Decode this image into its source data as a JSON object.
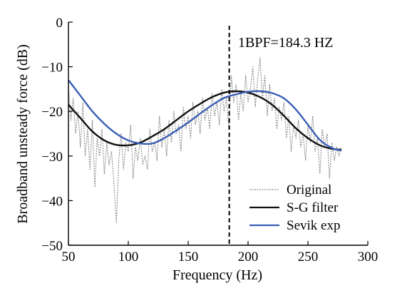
{
  "chart_data": {
    "type": "line",
    "xlabel": "Frequency (Hz)",
    "ylabel": "Broadband unsteady force (dB)",
    "xlim": [
      50,
      300
    ],
    "ylim": [
      -50,
      0
    ],
    "xticks": [
      50,
      100,
      150,
      200,
      250,
      300
    ],
    "yticks": [
      0,
      -10,
      -20,
      -30,
      -40,
      -50
    ],
    "grid": false,
    "legend_position": "bottom-right",
    "annotation": {
      "text": "1BPF=184.3 HZ",
      "x": 184.3,
      "style": "dashed-vertical-line"
    },
    "series": [
      {
        "name": "Original",
        "style": "dotted",
        "color": "#8a8a8a",
        "x": [
          50,
          52,
          54,
          56,
          58,
          60,
          62,
          64,
          66,
          68,
          70,
          72,
          74,
          76,
          78,
          80,
          82,
          84,
          86,
          88,
          90,
          92,
          94,
          96,
          98,
          100,
          102,
          104,
          106,
          108,
          110,
          112,
          114,
          116,
          118,
          120,
          122,
          124,
          126,
          128,
          130,
          132,
          134,
          136,
          138,
          140,
          142,
          144,
          146,
          148,
          150,
          152,
          154,
          156,
          158,
          160,
          162,
          164,
          166,
          168,
          170,
          172,
          174,
          176,
          178,
          180,
          182,
          184,
          186,
          188,
          190,
          192,
          194,
          196,
          198,
          200,
          202,
          204,
          206,
          208,
          210,
          212,
          214,
          216,
          218,
          220,
          222,
          224,
          226,
          228,
          230,
          232,
          234,
          236,
          238,
          240,
          242,
          244,
          246,
          248,
          250,
          252,
          254,
          256,
          258,
          260,
          262,
          264,
          266,
          268,
          270,
          272,
          274,
          276,
          278
        ],
        "values": [
          -14,
          -22,
          -17,
          -25,
          -20,
          -28,
          -18,
          -30,
          -24,
          -33,
          -22,
          -37,
          -26,
          -30,
          -24,
          -34,
          -27,
          -32,
          -29,
          -36,
          -45,
          -31,
          -25,
          -33,
          -27,
          -29,
          -23,
          -35,
          -28,
          -31,
          -26,
          -32,
          -30,
          -33,
          -24,
          -29,
          -27,
          -31,
          -21,
          -28,
          -24,
          -30,
          -22,
          -27,
          -20,
          -25,
          -23,
          -29,
          -19,
          -24,
          -21,
          -26,
          -18,
          -23,
          -20,
          -25,
          -17,
          -22,
          -19,
          -24,
          -16,
          -21,
          -18,
          -23,
          -15,
          -20,
          -17,
          -24,
          -12,
          -18,
          -14,
          -22,
          -16,
          -20,
          -12,
          -18,
          -15,
          -10,
          -19,
          -13,
          -8,
          -17,
          -12,
          -21,
          -14,
          -20,
          -17,
          -24,
          -19,
          -22,
          -18,
          -26,
          -21,
          -29,
          -23,
          -26,
          -22,
          -28,
          -25,
          -31,
          -23,
          -27,
          -21,
          -29,
          -26,
          -34,
          -24,
          -28,
          -25,
          -35,
          -27,
          -31,
          -28,
          -30,
          -28
        ]
      },
      {
        "name": "S-G filter",
        "style": "solid",
        "color": "#111111",
        "x": [
          50,
          60,
          70,
          80,
          90,
          100,
          110,
          120,
          130,
          140,
          150,
          160,
          170,
          180,
          190,
          200,
          210,
          220,
          230,
          240,
          250,
          260,
          270,
          278
        ],
        "values": [
          -18.5,
          -21.5,
          -24.5,
          -26.5,
          -27.5,
          -27.6,
          -27,
          -25.6,
          -24,
          -22,
          -20,
          -18.3,
          -16.8,
          -15.8,
          -15.5,
          -15.8,
          -16.8,
          -18.5,
          -21,
          -23.8,
          -26,
          -27.6,
          -28.4,
          -28.6
        ]
      },
      {
        "name": "Sevik exp",
        "style": "solid",
        "color": "#3a5fb5",
        "x": [
          50,
          60,
          70,
          80,
          90,
          100,
          110,
          120,
          130,
          140,
          150,
          160,
          170,
          180,
          190,
          200,
          210,
          220,
          230,
          240,
          250,
          260,
          270,
          278
        ],
        "values": [
          -13,
          -16.5,
          -20,
          -22.8,
          -25,
          -26.5,
          -27.2,
          -27.2,
          -26,
          -24.3,
          -22.5,
          -20.5,
          -18.6,
          -17,
          -16.2,
          -15.6,
          -15.5,
          -15.9,
          -17.1,
          -19.6,
          -23,
          -26.4,
          -28.2,
          -28.8
        ]
      }
    ]
  }
}
